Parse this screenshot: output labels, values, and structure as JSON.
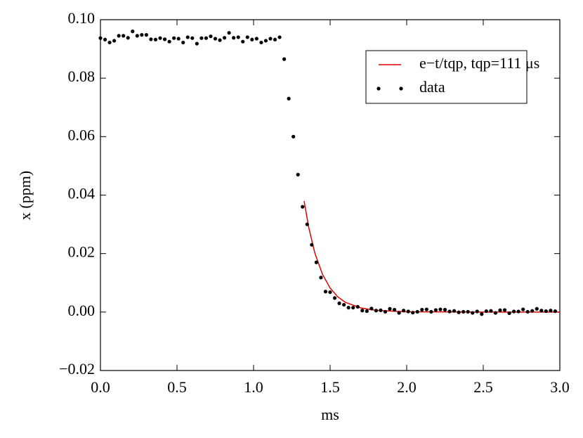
{
  "chart_data": {
    "type": "scatter",
    "xlabel": "ms",
    "ylabel": "x (ppm)",
    "xlim": [
      0,
      3
    ],
    "ylim": [
      -0.02,
      0.1
    ],
    "xticks": [
      {
        "value": 0,
        "label": "0.0"
      },
      {
        "value": 0.5,
        "label": "0.5"
      },
      {
        "value": 1,
        "label": "1.0"
      },
      {
        "value": 1.5,
        "label": "1.5"
      },
      {
        "value": 2,
        "label": "2.0"
      },
      {
        "value": 2.5,
        "label": "2.5"
      },
      {
        "value": 3,
        "label": "3.0"
      }
    ],
    "yticks": [
      {
        "value": -0.02,
        "label": "−0.02"
      },
      {
        "value": 0,
        "label": "0.00"
      },
      {
        "value": 0.02,
        "label": "0.02"
      },
      {
        "value": 0.04,
        "label": "0.04"
      },
      {
        "value": 0.06,
        "label": "0.06"
      },
      {
        "value": 0.08,
        "label": "0.08"
      },
      {
        "value": 0.1,
        "label": "0.10"
      }
    ],
    "legend": "upper right",
    "series": [
      {
        "name": "e−t/tqp, tqp=111 μs",
        "kind": "line",
        "color": "#e00000",
        "x": [
          1.33,
          1.36,
          1.4,
          1.45,
          1.5,
          1.55,
          1.6,
          1.7,
          1.8,
          2.0,
          2.5,
          3.0
        ],
        "values": [
          0.038,
          0.029,
          0.0202,
          0.0129,
          0.0082,
          0.0052,
          0.0033,
          0.0014,
          0.00055,
          9e-05,
          0,
          0
        ]
      },
      {
        "name": "data",
        "kind": "points",
        "color": "#000000",
        "x": [
          0,
          0.03,
          0.06,
          0.09,
          0.12,
          0.15,
          0.18,
          0.21,
          0.24,
          0.27,
          0.3,
          0.33,
          0.36,
          0.39,
          0.42,
          0.45,
          0.48,
          0.51,
          0.54,
          0.57,
          0.6,
          0.63,
          0.66,
          0.69,
          0.72,
          0.75,
          0.78,
          0.81,
          0.84,
          0.87,
          0.9,
          0.93,
          0.96,
          0.99,
          1.02,
          1.05,
          1.08,
          1.11,
          1.14,
          1.17,
          1.2,
          1.23,
          1.26,
          1.29,
          1.32,
          1.35,
          1.38,
          1.41,
          1.44,
          1.47,
          1.5,
          1.53,
          1.56,
          1.59,
          1.62,
          1.65,
          1.68,
          1.71,
          1.74,
          1.77,
          1.8,
          1.83,
          1.86,
          1.89,
          1.92,
          1.95,
          1.98,
          2.01,
          2.04,
          2.07,
          2.1,
          2.13,
          2.16,
          2.19,
          2.22,
          2.25,
          2.28,
          2.31,
          2.34,
          2.37,
          2.4,
          2.43,
          2.46,
          2.49,
          2.52,
          2.55,
          2.58,
          2.61,
          2.64,
          2.67,
          2.7,
          2.73,
          2.76,
          2.79,
          2.82,
          2.85,
          2.88,
          2.91,
          2.94,
          2.97
        ],
        "values": [
          0.0937,
          0.0932,
          0.0922,
          0.0928,
          0.0945,
          0.0945,
          0.0938,
          0.096,
          0.0945,
          0.0948,
          0.0948,
          0.0933,
          0.0932,
          0.0937,
          0.0933,
          0.0925,
          0.0937,
          0.0935,
          0.0922,
          0.094,
          0.0937,
          0.0918,
          0.0937,
          0.0937,
          0.0943,
          0.0935,
          0.093,
          0.0938,
          0.0955,
          0.0938,
          0.094,
          0.0925,
          0.094,
          0.0932,
          0.0935,
          0.0922,
          0.0928,
          0.0935,
          0.0932,
          0.094,
          0.0865,
          0.073,
          0.06,
          0.047,
          0.036,
          0.03,
          0.023,
          0.017,
          0.0118,
          0.007,
          0.0068,
          0.0048,
          0.003,
          0.0025,
          0.0015,
          0.0015,
          0.0018,
          0.0005,
          0.0003,
          0.0012,
          0.0005,
          0.0006,
          0.0001,
          0.0011,
          0.0008,
          -0.0003,
          0.0005,
          0.0002,
          -0.0002,
          0.0001,
          0.0008,
          0.0009,
          0.0001,
          0.0007,
          0.0009,
          0.0008,
          0.0002,
          0.0004,
          -0.0001,
          0.0001,
          0.0001,
          -0.0003,
          0.0002,
          -0.0007,
          0.0003,
          0.0004,
          -0.0003,
          0.0006,
          0.0007,
          -0.0004,
          0.0002,
          0.0002,
          0.0009,
          0.0001,
          0.0004,
          0.0011,
          0.0005,
          0.0003,
          0.0005,
          0.0003
        ]
      }
    ]
  }
}
